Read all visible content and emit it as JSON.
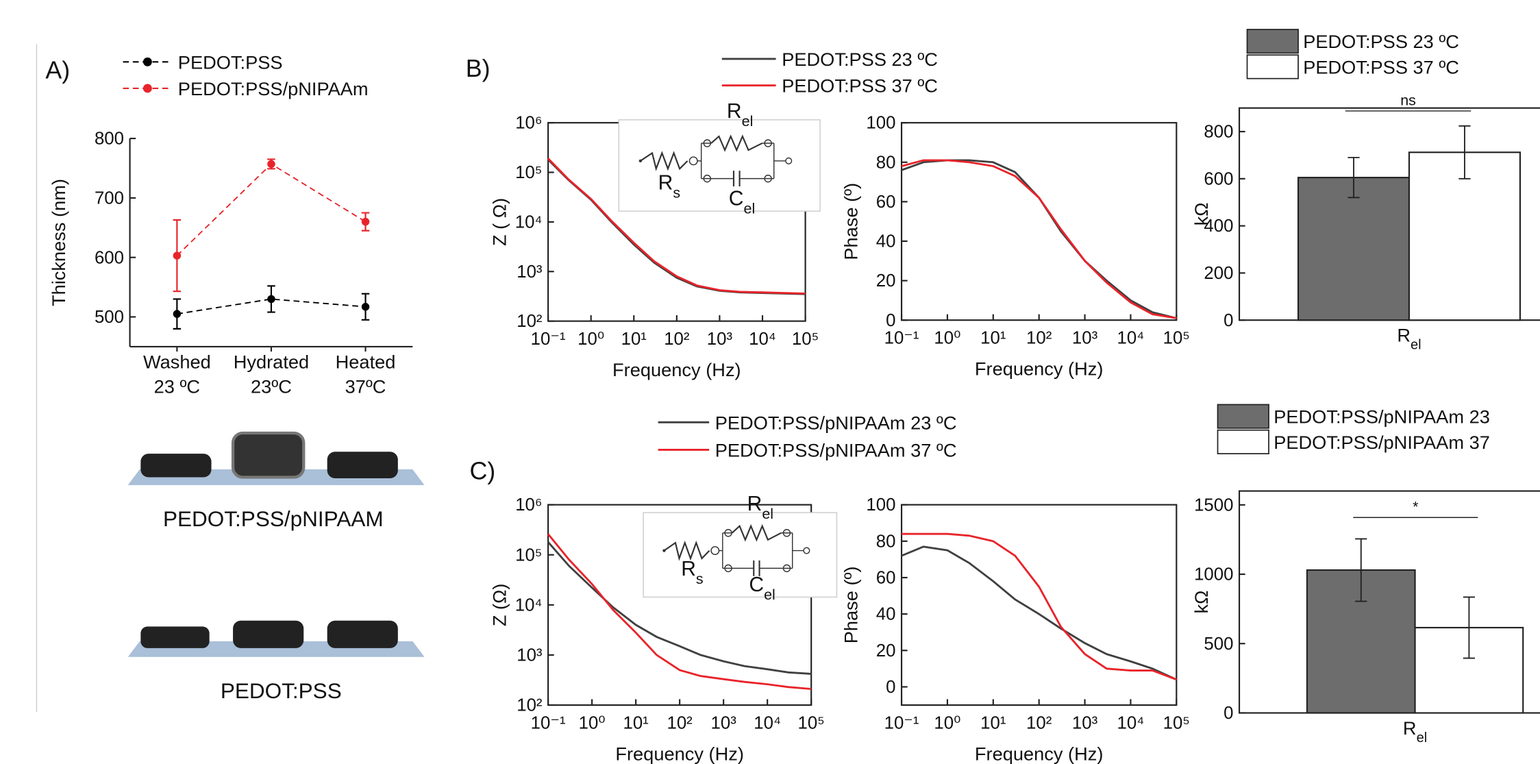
{
  "panels": [
    "A)",
    "B)",
    "C)"
  ],
  "schematic_labels": [
    "PEDOT:PSS/pNIPAAM",
    "PEDOT:PSS"
  ],
  "chart_data": [
    {
      "type": "line",
      "ylabel": "Thickness (nm)",
      "categories": [
        "Washed 23 ºC",
        "Hydrated 23ºC",
        "Heated 37ºC"
      ],
      "ylim": [
        450,
        800
      ],
      "yticks": [
        500,
        600,
        700,
        800
      ],
      "series": [
        {
          "name": "PEDOT:PSS",
          "color": "#000000",
          "values": [
            505,
            530,
            517
          ],
          "errors": [
            25,
            22,
            22
          ]
        },
        {
          "name": "PEDOT:PSS/pNIPAAm",
          "color": "#e8242a",
          "values": [
            603,
            757,
            660
          ],
          "errors": [
            60,
            8,
            15
          ]
        }
      ]
    },
    {
      "type": "line",
      "xlabel": "Frequency (Hz)",
      "ylabel": "Z ( Ω)",
      "xscale": "log",
      "yscale": "log",
      "x": [
        0.1,
        0.3,
        1,
        3,
        10,
        30,
        100,
        300,
        1000,
        3000,
        10000,
        30000,
        100000
      ],
      "xlim": [
        0.1,
        100000
      ],
      "ylim": [
        100,
        1000000
      ],
      "xticks": [
        {
          "value": 0.1,
          "label": "10⁻¹"
        },
        {
          "value": 1,
          "label": "10⁰"
        },
        {
          "value": 10,
          "label": "10¹"
        },
        {
          "value": 100,
          "label": "10²"
        },
        {
          "value": 1000,
          "label": "10³"
        },
        {
          "value": 10000,
          "label": "10⁴"
        },
        {
          "value": 100000,
          "label": "10⁵"
        }
      ],
      "yticks": [
        {
          "value": 100,
          "label": "10²"
        },
        {
          "value": 1000,
          "label": "10³"
        },
        {
          "value": 10000,
          "label": "10⁴"
        },
        {
          "value": 100000,
          "label": "10⁵"
        },
        {
          "value": 1000000,
          "label": "10⁶"
        }
      ],
      "series": [
        {
          "name": "PEDOT:PSS 23 ºC",
          "color": "#404040",
          "values": [
            180000,
            70000,
            28000,
            10000,
            3500,
            1500,
            750,
            500,
            410,
            380,
            370,
            360,
            350
          ]
        },
        {
          "name": "PEDOT:PSS 37 ºC",
          "color": "#e8242a",
          "values": [
            190000,
            72000,
            29000,
            10500,
            3800,
            1600,
            800,
            520,
            420,
            390,
            380,
            370,
            360
          ]
        }
      ],
      "annotations": [
        {
          "text": "R",
          "sub": "el"
        },
        {
          "text": "R",
          "sub": "s"
        },
        {
          "text": "C",
          "sub": "el"
        }
      ]
    },
    {
      "type": "line",
      "xlabel": "Frequency (Hz)",
      "ylabel": "Phase (º)",
      "xscale": "log",
      "x": [
        0.1,
        0.3,
        1,
        3,
        10,
        30,
        100,
        300,
        1000,
        3000,
        10000,
        30000,
        100000
      ],
      "xlim": [
        0.1,
        100000
      ],
      "ylim": [
        0,
        100
      ],
      "xticks": [
        {
          "value": 0.1,
          "label": "10⁻¹"
        },
        {
          "value": 1,
          "label": "10⁰"
        },
        {
          "value": 10,
          "label": "10¹"
        },
        {
          "value": 100,
          "label": "10²"
        },
        {
          "value": 1000,
          "label": "10³"
        },
        {
          "value": 10000,
          "label": "10⁴"
        },
        {
          "value": 100000,
          "label": "10⁵"
        }
      ],
      "yticks": [
        0,
        20,
        40,
        60,
        80,
        100
      ],
      "series": [
        {
          "color": "#404040",
          "values": [
            76,
            80,
            81,
            81,
            80,
            75,
            62,
            45,
            30,
            20,
            10,
            4,
            1
          ]
        },
        {
          "color": "#e8242a",
          "values": [
            78,
            81,
            81,
            80,
            78,
            73,
            62,
            46,
            30,
            19,
            9,
            3,
            1
          ]
        }
      ]
    },
    {
      "type": "bar",
      "ylabel": "kΩ",
      "categories": [
        "Rel"
      ],
      "ylim": [
        0,
        900
      ],
      "yticks": [
        0,
        200,
        400,
        600,
        800
      ],
      "series": [
        {
          "name": "PEDOT:PSS 23 ºC",
          "color": "#6d6d6d",
          "values": [
            605
          ],
          "errors": [
            85
          ]
        },
        {
          "name": "PEDOT:PSS 37 ºC",
          "color": "#ffffff",
          "values": [
            712
          ],
          "errors": [
            112
          ]
        }
      ],
      "annotation": "ns"
    },
    {
      "type": "line",
      "xlabel": "Frequency (Hz)",
      "ylabel": "Z (Ω)",
      "xscale": "log",
      "yscale": "log",
      "x": [
        0.1,
        0.3,
        1,
        3,
        10,
        30,
        100,
        300,
        1000,
        3000,
        10000,
        30000,
        100000
      ],
      "xlim": [
        0.1,
        100000
      ],
      "ylim": [
        100,
        1000000
      ],
      "xticks": [
        {
          "value": 0.1,
          "label": "10⁻¹"
        },
        {
          "value": 1,
          "label": "10⁰"
        },
        {
          "value": 10,
          "label": "10¹"
        },
        {
          "value": 100,
          "label": "10²"
        },
        {
          "value": 1000,
          "label": "10³"
        },
        {
          "value": 10000,
          "label": "10⁴"
        },
        {
          "value": 100000,
          "label": "10⁵"
        }
      ],
      "yticks": [
        {
          "value": 100,
          "label": "10²"
        },
        {
          "value": 1000,
          "label": "10³"
        },
        {
          "value": 10000,
          "label": "10⁴"
        },
        {
          "value": 100000,
          "label": "10⁵"
        },
        {
          "value": 1000000,
          "label": "10⁶"
        }
      ],
      "series": [
        {
          "name": "PEDOT:PSS/pNIPAAm 23 ºC",
          "color": "#404040",
          "values": [
            180000,
            60000,
            22000,
            9000,
            4000,
            2300,
            1500,
            1000,
            750,
            600,
            520,
            450,
            420
          ]
        },
        {
          "name": "PEDOT:PSS/pNIPAAm 37 ºC",
          "color": "#e8242a",
          "values": [
            260000,
            80000,
            26000,
            8000,
            2800,
            1000,
            500,
            380,
            330,
            290,
            260,
            230,
            210
          ]
        }
      ],
      "annotations": [
        {
          "text": "R",
          "sub": "el"
        },
        {
          "text": "R",
          "sub": "s"
        },
        {
          "text": "C",
          "sub": "el"
        }
      ]
    },
    {
      "type": "line",
      "xlabel": "Frequency (Hz)",
      "ylabel": "Phase (º)",
      "xscale": "log",
      "x": [
        0.1,
        0.3,
        1,
        3,
        10,
        30,
        100,
        300,
        1000,
        3000,
        10000,
        30000,
        100000
      ],
      "xlim": [
        0.1,
        100000
      ],
      "ylim": [
        -10,
        100
      ],
      "xticks": [
        {
          "value": 0.1,
          "label": "10⁻¹"
        },
        {
          "value": 1,
          "label": "10⁰"
        },
        {
          "value": 10,
          "label": "10¹"
        },
        {
          "value": 100,
          "label": "10²"
        },
        {
          "value": 1000,
          "label": "10³"
        },
        {
          "value": 10000,
          "label": "10⁴"
        },
        {
          "value": 100000,
          "label": "10⁵"
        }
      ],
      "yticks": [
        0,
        20,
        40,
        60,
        80,
        100
      ],
      "series": [
        {
          "color": "#404040",
          "values": [
            72,
            77,
            75,
            68,
            58,
            48,
            40,
            32,
            24,
            18,
            14,
            10,
            4
          ]
        },
        {
          "color": "#e8242a",
          "values": [
            84,
            84,
            84,
            83,
            80,
            72,
            55,
            33,
            18,
            10,
            9,
            9,
            4
          ]
        }
      ]
    },
    {
      "type": "bar",
      "ylabel": "kΩ",
      "categories": [
        "Rel"
      ],
      "ylim": [
        0,
        1600
      ],
      "yticks": [
        0,
        500,
        1000,
        1500
      ],
      "series": [
        {
          "name": "PEDOT:PSS/pNIPAAm 23",
          "color": "#6d6d6d",
          "values": [
            1030
          ],
          "errors": [
            225
          ]
        },
        {
          "name": "PEDOT:PSS/pNIPAAm 37",
          "color": "#ffffff",
          "values": [
            615
          ],
          "errors": [
            220
          ]
        }
      ],
      "annotation": "*"
    }
  ]
}
